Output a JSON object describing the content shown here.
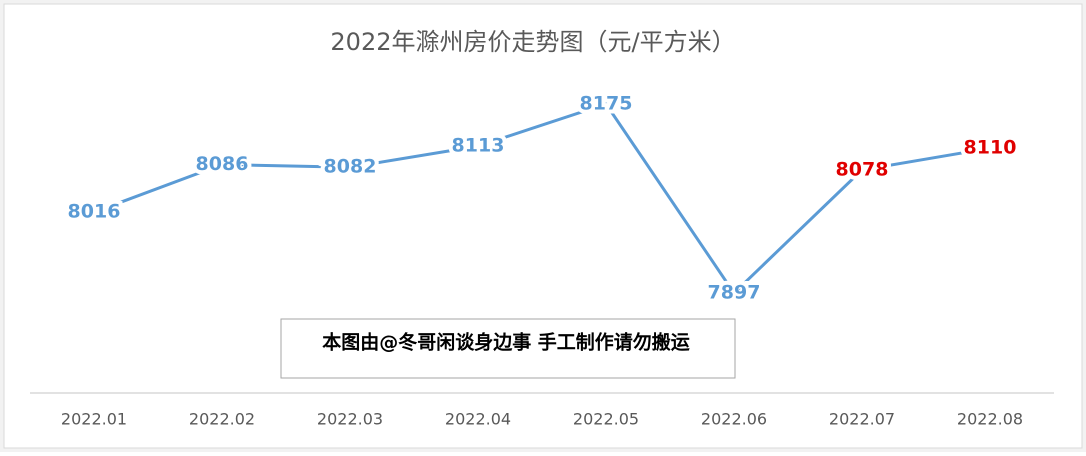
{
  "chart_data": {
    "type": "line",
    "title": "2022年滁州房价走势图（元/平方米）",
    "categories": [
      "2022.01",
      "2022.02",
      "2022.03",
      "2022.04",
      "2022.05",
      "2022.06",
      "2022.07",
      "2022.08"
    ],
    "values": [
      8016,
      8086,
      8082,
      8113,
      8175,
      7897,
      8078,
      8110
    ],
    "color": "#5b9bd5",
    "value_label_colors": [
      "#5b9bd5",
      "#5b9bd5",
      "#5b9bd5",
      "#5b9bd5",
      "#5b9bd5",
      "#5b9bd5",
      "#e00000",
      "#e00000"
    ],
    "ylim": [
      7750,
      8250
    ],
    "annotation": "本图由@冬哥闲谈身边事 手工制作请勿搬运"
  }
}
